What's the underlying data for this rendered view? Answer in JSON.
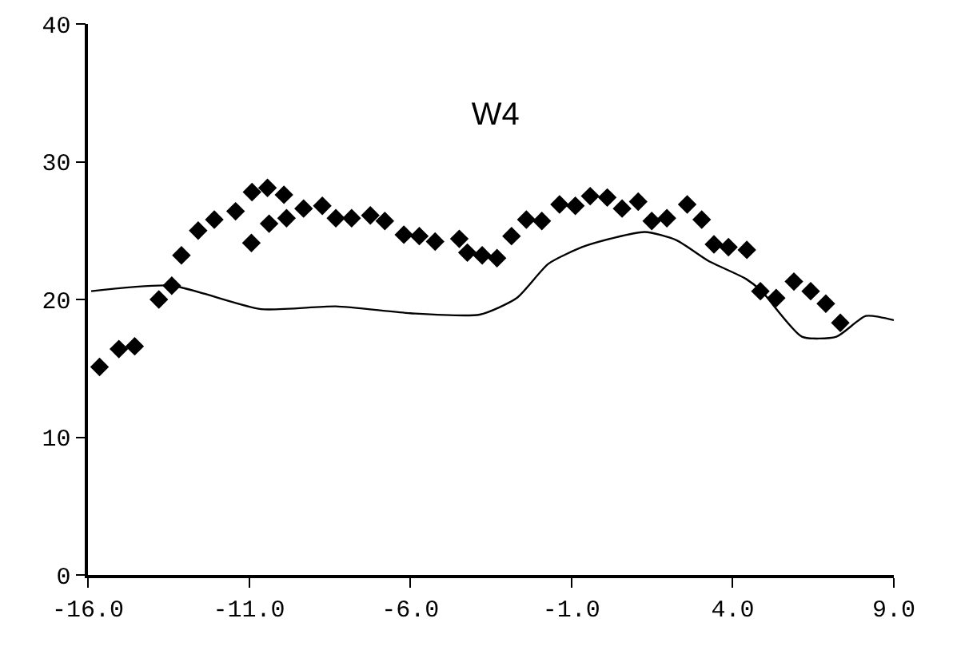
{
  "chart_data": {
    "type": "scatter",
    "title": "W4",
    "xlim": [
      -16,
      9
    ],
    "ylim": [
      0,
      40
    ],
    "xticks": [
      {
        "value": -16,
        "label": "-16.0"
      },
      {
        "value": -11,
        "label": "-11.0"
      },
      {
        "value": -6,
        "label": "-6.0"
      },
      {
        "value": -1,
        "label": "-1.0"
      },
      {
        "value": 4,
        "label": "4.0"
      },
      {
        "value": 9,
        "label": "9.0"
      }
    ],
    "yticks": [
      0,
      10,
      20,
      30,
      40
    ],
    "series": [
      {
        "marker": "diamond",
        "color": "#000000",
        "x": [
          -15.64,
          -15.04,
          -14.55,
          -13.8,
          -13.4,
          -13.1,
          -12.58,
          -12.08,
          -11.42,
          -10.93,
          -10.91,
          -10.43,
          -10.38,
          -9.92,
          -9.84,
          -9.31,
          -8.73,
          -8.31,
          -7.82,
          -7.24,
          -6.79,
          -6.2,
          -5.72,
          -5.23,
          -4.48,
          -4.23,
          -3.77,
          -3.31,
          -2.86,
          -2.4,
          -1.92,
          -1.37,
          -0.88,
          -0.42,
          0.11,
          0.57,
          1.07,
          1.49,
          1.96,
          2.59,
          3.04,
          3.42,
          3.87,
          4.44,
          4.86,
          5.35,
          5.9,
          6.42,
          6.89,
          7.34
        ],
        "values": [
          15.1,
          16.4,
          16.6,
          20.0,
          21.0,
          23.2,
          25.0,
          25.8,
          26.4,
          24.1,
          27.8,
          28.1,
          25.5,
          27.6,
          25.9,
          26.6,
          26.8,
          25.9,
          25.9,
          26.1,
          25.7,
          24.7,
          24.6,
          24.2,
          24.4,
          23.4,
          23.2,
          23.0,
          24.6,
          25.8,
          25.7,
          26.9,
          26.8,
          27.5,
          27.4,
          26.6,
          27.1,
          25.7,
          25.9,
          26.9,
          25.8,
          24.0,
          23.8,
          23.6,
          20.6,
          20.1,
          21.3,
          20.6,
          19.7,
          18.3
        ]
      },
      {
        "type": "line",
        "marker": "none",
        "line_style": "solid",
        "color": "#000000",
        "x": [
          -15.9,
          -13.4,
          -10.63,
          -8.31,
          -6.0,
          -3.85,
          -2.7,
          -1.71,
          -0.55,
          1.27,
          2.26,
          3.25,
          4.41,
          4.9,
          6.15,
          7.22,
          8.13,
          9.0
        ],
        "values": [
          20.6,
          21.0,
          19.3,
          19.5,
          19.0,
          18.9,
          20.1,
          22.6,
          23.9,
          24.9,
          24.3,
          22.8,
          21.5,
          20.6,
          17.3,
          17.3,
          18.8,
          18.5
        ]
      }
    ]
  }
}
